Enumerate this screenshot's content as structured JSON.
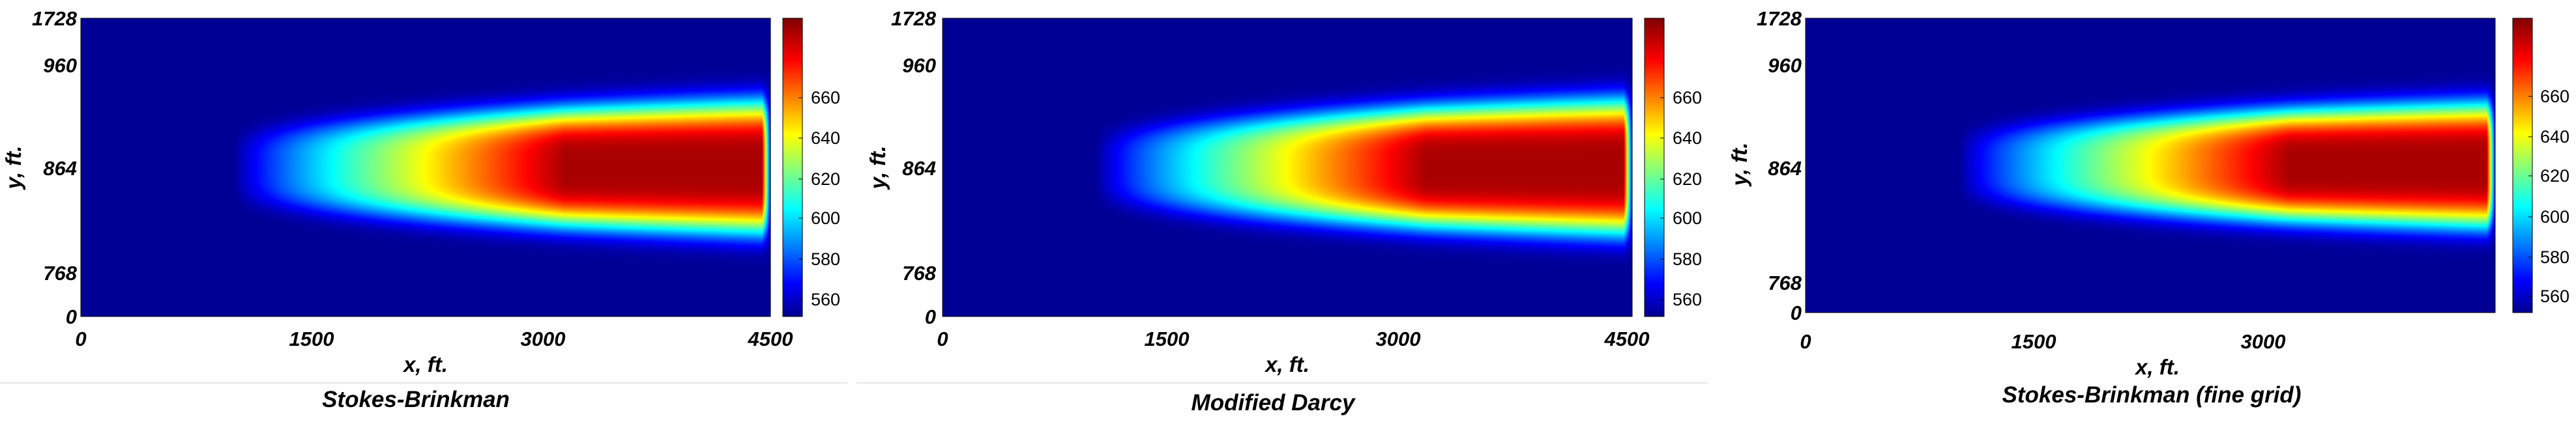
{
  "chart_data": [
    {
      "type": "heatmap",
      "caption": "Stokes-Brinkman",
      "xlabel": "x, ft.",
      "ylabel": "y, ft.",
      "xticks": [
        "0",
        "1500",
        "3000",
        "4500"
      ],
      "yticks": [
        "0",
        "768",
        "864",
        "960",
        "1728"
      ],
      "colorbar": {
        "ticks": [
          "560",
          "580",
          "600",
          "620",
          "640",
          "660"
        ],
        "min": 550,
        "max": 672
      },
      "field": {
        "background": 550,
        "peak": 672,
        "core_center_y": 864,
        "front_x_ft": 1200,
        "well_x_ft": 4450,
        "max_half_width_ft": 70
      }
    },
    {
      "type": "heatmap",
      "caption": "Modified Darcy",
      "xlabel": "x, ft.",
      "ylabel": "y, ft.",
      "xticks": [
        "0",
        "1500",
        "3000",
        "4500"
      ],
      "yticks": [
        "0",
        "768",
        "864",
        "960",
        "1728"
      ],
      "colorbar": {
        "ticks": [
          "560",
          "580",
          "600",
          "620",
          "640",
          "660"
        ],
        "min": 550,
        "max": 672
      },
      "field": {
        "background": 550,
        "peak": 672,
        "core_center_y": 864,
        "front_x_ft": 1200,
        "well_x_ft": 4450,
        "max_half_width_ft": 72
      }
    },
    {
      "type": "heatmap",
      "caption": "Stokes-Brinkman (fine grid)",
      "xlabel": "x, ft.",
      "ylabel": "y, ft.",
      "xticks": [
        "0",
        "1500",
        "3000"
      ],
      "yticks": [
        "0",
        "768",
        "864",
        "960",
        "1728"
      ],
      "colorbar": {
        "ticks": [
          "560",
          "580",
          "600",
          "620",
          "640",
          "660"
        ],
        "min": 550,
        "max": 672
      },
      "field": {
        "background": 550,
        "peak": 672,
        "core_center_y": 864,
        "front_x_ft": 1200,
        "well_x_ft": 4450,
        "max_half_width_ft": 64
      }
    }
  ]
}
